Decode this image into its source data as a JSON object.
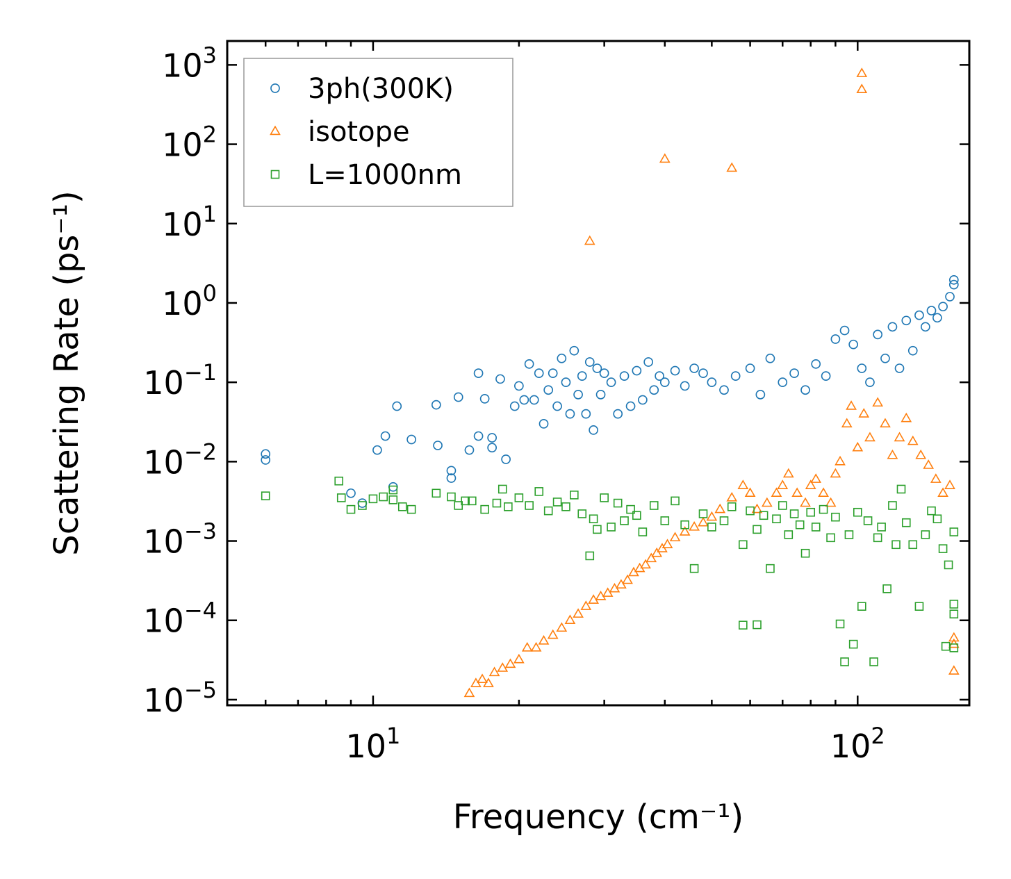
{
  "chart_data": {
    "type": "scatter",
    "xscale": "log",
    "yscale": "log",
    "xlabel": "Frequency (cm⁻¹)",
    "ylabel": "Scattering Rate (ps⁻¹)",
    "xlim": [
      5.0,
      170.0
    ],
    "ylim": [
      8.5e-06,
      2000
    ],
    "grid": false,
    "legend_position": "top-left",
    "x_tick_labels": [
      {
        "value": 10,
        "base": "10",
        "exp": "1"
      },
      {
        "value": 100,
        "base": "10",
        "exp": "2"
      }
    ],
    "y_tick_labels": [
      {
        "value": 1000,
        "base": "10",
        "exp": "3"
      },
      {
        "value": 100,
        "base": "10",
        "exp": "2"
      },
      {
        "value": 10,
        "base": "10",
        "exp": "1"
      },
      {
        "value": 1,
        "base": "10",
        "exp": "0"
      },
      {
        "value": 0.1,
        "base": "10",
        "exp": "−1"
      },
      {
        "value": 0.01,
        "base": "10",
        "exp": "−2"
      },
      {
        "value": 0.001,
        "base": "10",
        "exp": "−3"
      },
      {
        "value": 0.0001,
        "base": "10",
        "exp": "−4"
      },
      {
        "value": 1e-05,
        "base": "10",
        "exp": "−5"
      }
    ],
    "series": [
      {
        "name": "3ph(300K)",
        "marker": "circle",
        "color": "#1f77b4",
        "x": [
          6.0,
          6.0,
          9.0,
          9.5,
          10.2,
          10.6,
          11.0,
          11.2,
          12.0,
          13.5,
          13.6,
          14.5,
          14.5,
          15.0,
          15.8,
          16.5,
          16.5,
          17.0,
          17.6,
          17.6,
          18.3,
          18.8,
          19.6,
          20.0,
          20.5,
          21.0,
          21.5,
          22.0,
          22.5,
          23.0,
          23.5,
          24.0,
          24.5,
          25.0,
          25.5,
          26.0,
          26.5,
          27.0,
          27.5,
          28.0,
          28.5,
          29.0,
          29.5,
          30.0,
          31.0,
          32.0,
          33.0,
          34.0,
          35.0,
          36.0,
          37.0,
          38.0,
          39.0,
          40.0,
          42.0,
          44.0,
          46.0,
          48.0,
          50.0,
          53.0,
          56.0,
          60.0,
          63.0,
          66.0,
          70.0,
          74.0,
          78.0,
          82.0,
          86.0,
          90.0,
          94.0,
          98.0,
          102.0,
          106.0,
          110.0,
          114.0,
          118.0,
          122.0,
          126.0,
          130.0,
          134.0,
          138.0,
          142.0,
          146.0,
          150.0,
          155.0,
          158.0,
          158.0
        ],
        "y": [
          0.0125,
          0.0105,
          0.004,
          0.003,
          0.014,
          0.021,
          0.0048,
          0.05,
          0.019,
          0.052,
          0.016,
          0.0077,
          0.0062,
          0.065,
          0.014,
          0.13,
          0.021,
          0.062,
          0.015,
          0.02,
          0.11,
          0.0107,
          0.05,
          0.09,
          0.06,
          0.17,
          0.06,
          0.13,
          0.03,
          0.08,
          0.13,
          0.05,
          0.2,
          0.1,
          0.04,
          0.25,
          0.07,
          0.12,
          0.04,
          0.18,
          0.025,
          0.15,
          0.07,
          0.13,
          0.1,
          0.04,
          0.12,
          0.05,
          0.14,
          0.06,
          0.18,
          0.08,
          0.12,
          0.1,
          0.14,
          0.09,
          0.15,
          0.13,
          0.1,
          0.08,
          0.12,
          0.15,
          0.07,
          0.2,
          0.1,
          0.13,
          0.08,
          0.17,
          0.12,
          0.35,
          0.45,
          0.3,
          0.15,
          0.1,
          0.4,
          0.2,
          0.5,
          0.15,
          0.6,
          0.25,
          0.7,
          0.5,
          0.8,
          0.65,
          0.9,
          1.2,
          1.95,
          1.7
        ]
      },
      {
        "name": "isotope",
        "marker": "triangle",
        "color": "#ff7f0e",
        "x": [
          15.8,
          16.3,
          16.8,
          17.3,
          17.8,
          18.5,
          19.2,
          20.0,
          20.8,
          21.7,
          22.5,
          23.5,
          24.5,
          25.5,
          26.5,
          27.5,
          28.5,
          29.5,
          30.5,
          31.5,
          32.5,
          33.5,
          34.5,
          35.5,
          36.5,
          37.5,
          38.5,
          39.5,
          40.5,
          42.0,
          44.0,
          46.0,
          48.0,
          50.0,
          52.0,
          55.0,
          58.0,
          60.0,
          62.0,
          65.0,
          68.0,
          70.0,
          72.0,
          75.0,
          78.0,
          80.0,
          82.0,
          85.0,
          88.0,
          90.0,
          92.0,
          95.0,
          97.0,
          100.0,
          103.0,
          106.0,
          110.0,
          114.0,
          118.0,
          122.0,
          126.0,
          130.0,
          135.0,
          140.0,
          145.0,
          150.0,
          155.0,
          158.0,
          158.0,
          158.0,
          28.0,
          40.0,
          55.0,
          102.0,
          102.0
        ],
        "y": [
          1.2e-05,
          1.6e-05,
          1.8e-05,
          1.6e-05,
          2.2e-05,
          2.5e-05,
          2.8e-05,
          3.2e-05,
          4.5e-05,
          4.5e-05,
          5.5e-05,
          6.5e-05,
          8e-05,
          0.0001,
          0.00012,
          0.00015,
          0.00018,
          0.0002,
          0.00022,
          0.00025,
          0.00028,
          0.00032,
          0.0004,
          0.00045,
          0.0005,
          0.0006,
          0.0007,
          0.0008,
          0.0009,
          0.0011,
          0.0013,
          0.0015,
          0.0017,
          0.002,
          0.0025,
          0.0035,
          0.005,
          0.004,
          0.0025,
          0.003,
          0.004,
          0.005,
          0.007,
          0.004,
          0.003,
          0.005,
          0.006,
          0.004,
          0.003,
          0.007,
          0.01,
          0.03,
          0.05,
          0.015,
          0.04,
          0.02,
          0.055,
          0.03,
          0.012,
          0.02,
          0.035,
          0.018,
          0.012,
          0.009,
          0.006,
          0.004,
          0.005,
          5e-05,
          6e-05,
          2.3e-05,
          6.0,
          65.0,
          50.0,
          780.0,
          490.0
        ]
      },
      {
        "name": "L=1000nm",
        "marker": "square",
        "color": "#2ca02c",
        "x": [
          6.0,
          8.5,
          8.6,
          9.0,
          9.5,
          10.0,
          10.5,
          11.0,
          11.0,
          11.5,
          12.0,
          13.5,
          14.5,
          15.0,
          15.5,
          16.0,
          17.0,
          18.0,
          18.5,
          19.0,
          20.0,
          21.0,
          22.0,
          23.0,
          24.0,
          25.0,
          26.0,
          27.0,
          28.0,
          28.5,
          29.0,
          30.0,
          31.0,
          32.0,
          33.0,
          34.0,
          35.0,
          36.0,
          38.0,
          40.0,
          42.0,
          44.0,
          46.0,
          48.0,
          50.0,
          53.0,
          55.0,
          58.0,
          60.0,
          62.0,
          64.0,
          66.0,
          68.0,
          70.0,
          72.0,
          74.0,
          76.0,
          78.0,
          80.0,
          82.0,
          85.0,
          88.0,
          90.0,
          92.0,
          94.0,
          96.0,
          98.0,
          100.0,
          102.0,
          105.0,
          108.0,
          110.0,
          112.0,
          115.0,
          118.0,
          120.0,
          123.0,
          126.0,
          130.0,
          134.0,
          138.0,
          142.0,
          146.0,
          150.0,
          154.0,
          158.0,
          158.0,
          158.0,
          158.0,
          152.0,
          58.0,
          62.0
        ],
        "y": [
          0.0037,
          0.0057,
          0.0035,
          0.0025,
          0.0028,
          0.0034,
          0.0036,
          0.0044,
          0.0033,
          0.0027,
          0.0025,
          0.004,
          0.0036,
          0.0028,
          0.0032,
          0.0032,
          0.0025,
          0.003,
          0.0045,
          0.0027,
          0.0035,
          0.0028,
          0.0042,
          0.0024,
          0.0031,
          0.0027,
          0.0038,
          0.0022,
          0.00065,
          0.0019,
          0.0014,
          0.0035,
          0.0015,
          0.003,
          0.0018,
          0.0025,
          0.0021,
          0.0013,
          0.0028,
          0.0018,
          0.0032,
          0.0016,
          0.00045,
          0.0022,
          0.0015,
          0.0018,
          0.0027,
          0.0009,
          0.0024,
          0.0014,
          0.0021,
          0.00045,
          0.0019,
          0.0028,
          0.0012,
          0.0022,
          0.0016,
          0.0007,
          0.0023,
          0.0015,
          0.0025,
          0.0011,
          0.002,
          9e-05,
          3e-05,
          0.0012,
          5e-05,
          0.0023,
          0.00015,
          0.0018,
          3e-05,
          0.0011,
          0.0015,
          0.00025,
          0.0028,
          0.0009,
          0.0045,
          0.0017,
          0.0009,
          0.00015,
          0.0012,
          0.0024,
          0.0019,
          0.0008,
          0.0005,
          0.0013,
          0.00016,
          0.00012,
          4.5e-05,
          4.7e-05,
          8.7e-05,
          8.8e-05
        ]
      }
    ]
  }
}
